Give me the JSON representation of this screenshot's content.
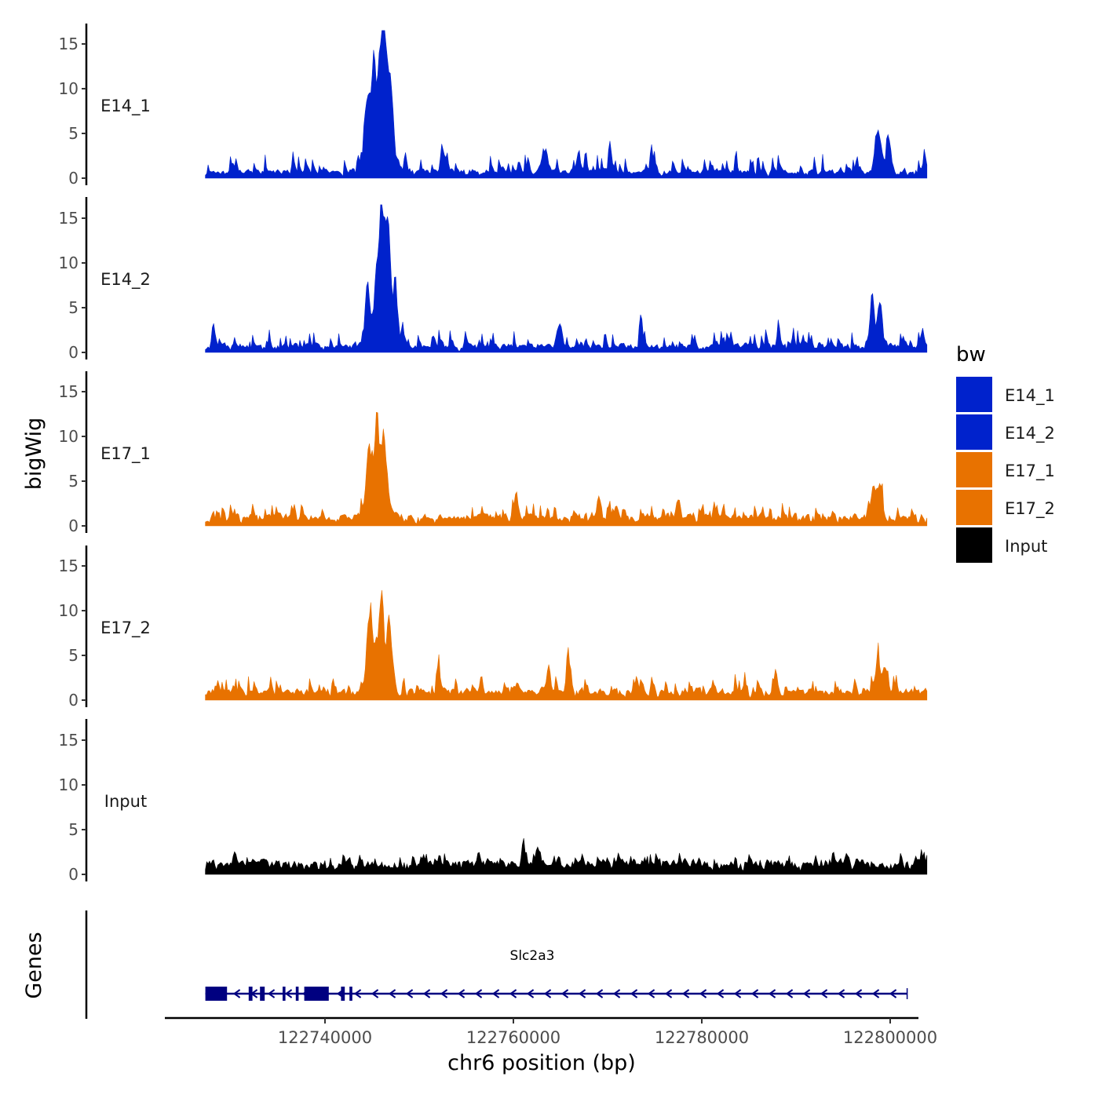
{
  "chart_data": {
    "type": "area",
    "title": "",
    "ylabel": "bigWig",
    "xlabel": "chr6 position (bp)",
    "ylim": [
      0,
      16.5
    ],
    "yticks": [
      0,
      5,
      10,
      15
    ],
    "x_range": [
      122723000,
      122803000
    ],
    "xticks": [
      122740000,
      122760000,
      122780000,
      122800000
    ],
    "x_start": 122727300,
    "x_end": 122803900,
    "legend": {
      "title": "bw",
      "position": "right",
      "entries": [
        {
          "label": "E14_1",
          "color": "#0022CC"
        },
        {
          "label": "E14_2",
          "color": "#0022CC"
        },
        {
          "label": "E17_1",
          "color": "#E87200"
        },
        {
          "label": "E17_2",
          "color": "#E87200"
        },
        {
          "label": "Input",
          "color": "#000000"
        }
      ]
    },
    "series": [
      {
        "name": "E14_1",
        "color": "#0022CC",
        "seed": 11,
        "baseline": 0.9,
        "noise": 1.4,
        "peaks": [
          [
            122746200,
            16.2,
            500
          ],
          [
            122745800,
            8.0,
            1200
          ],
          [
            122744400,
            10.5,
            300
          ],
          [
            122747000,
            8.5,
            300
          ],
          [
            122745100,
            9.0,
            300
          ],
          [
            122752400,
            4.0,
            250
          ],
          [
            122770200,
            5.8,
            150
          ],
          [
            122774600,
            5.2,
            150
          ],
          [
            122798600,
            5.5,
            400
          ],
          [
            122799800,
            4.5,
            300
          ],
          [
            122803600,
            3.8,
            150
          ],
          [
            122763200,
            3.5,
            300
          ]
        ]
      },
      {
        "name": "E14_2",
        "color": "#0022CC",
        "seed": 23,
        "baseline": 0.9,
        "noise": 1.5,
        "peaks": [
          [
            122745800,
            11.8,
            500
          ],
          [
            122746600,
            11.0,
            300
          ],
          [
            122744400,
            9.0,
            250
          ],
          [
            122747400,
            9.5,
            250
          ],
          [
            122746000,
            7.0,
            1200
          ],
          [
            122728100,
            5.0,
            150
          ],
          [
            122773500,
            6.0,
            150
          ],
          [
            122798000,
            8.2,
            300
          ],
          [
            122798800,
            6.0,
            300
          ],
          [
            122788100,
            5.0,
            150
          ],
          [
            122803400,
            4.0,
            150
          ],
          [
            122764800,
            4.2,
            300
          ]
        ]
      },
      {
        "name": "E17_1",
        "color": "#E87200",
        "seed": 37,
        "baseline": 1.2,
        "noise": 1.2,
        "peaks": [
          [
            122745500,
            8.5,
            300
          ],
          [
            122746200,
            8.4,
            300
          ],
          [
            122744600,
            7.5,
            300
          ],
          [
            122745400,
            5.0,
            1200
          ],
          [
            122798200,
            5.5,
            300
          ],
          [
            122798900,
            5.0,
            300
          ],
          [
            122760200,
            3.7,
            250
          ],
          [
            122769000,
            3.8,
            250
          ],
          [
            122777400,
            3.8,
            250
          ]
        ]
      },
      {
        "name": "E17_2",
        "color": "#E87200",
        "seed": 53,
        "baseline": 1.2,
        "noise": 1.4,
        "peaks": [
          [
            122746800,
            8.8,
            250
          ],
          [
            122745900,
            8.4,
            250
          ],
          [
            122744600,
            7.2,
            300
          ],
          [
            122745500,
            6.0,
            1200
          ],
          [
            122765800,
            5.8,
            250
          ],
          [
            122763700,
            4.8,
            250
          ],
          [
            122787800,
            5.0,
            150
          ],
          [
            122798600,
            5.0,
            300
          ],
          [
            122799400,
            3.5,
            300
          ],
          [
            122752000,
            5.0,
            200
          ]
        ]
      },
      {
        "name": "Input",
        "color": "#000000",
        "seed": 71,
        "baseline": 1.4,
        "noise": 0.9,
        "peaks": [
          [
            122756300,
            3.8,
            120
          ],
          [
            122762600,
            3.0,
            200
          ],
          [
            122761100,
            2.6,
            200
          ],
          [
            122803300,
            2.6,
            150
          ],
          [
            122795300,
            2.3,
            200
          ]
        ]
      }
    ],
    "gene_track": {
      "label": "Genes",
      "gene_name": "Slc2a3",
      "color": "#000080",
      "strand": "-",
      "start": 122727300,
      "end": 122801800,
      "exons": [
        [
          122727300,
          122729600
        ],
        [
          122731900,
          122732300
        ],
        [
          122733100,
          122733600
        ],
        [
          122735500,
          122735800
        ],
        [
          122736900,
          122737200
        ],
        [
          122737800,
          122740400
        ],
        [
          122741700,
          122742100
        ],
        [
          122742600,
          122742900
        ]
      ]
    }
  }
}
